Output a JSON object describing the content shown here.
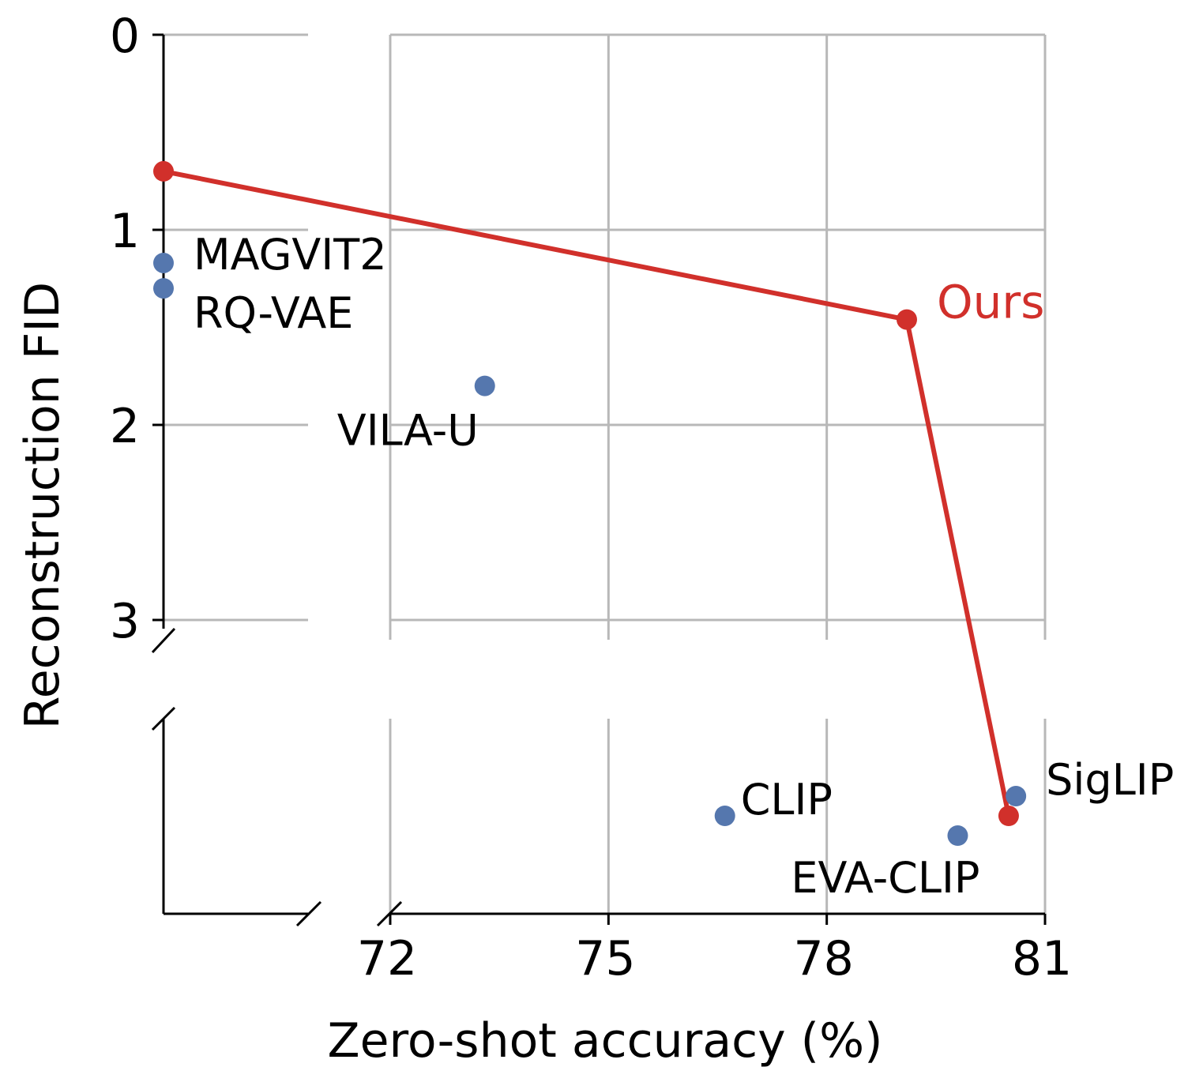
{
  "chart_data": {
    "type": "scatter",
    "xlabel": "Zero-shot accuracy (%)",
    "ylabel": "Reconstruction FID",
    "x_ticks": [
      "72",
      "75",
      "78",
      "81"
    ],
    "y_ticks": [
      "0",
      "1",
      "2",
      "3"
    ],
    "grid": true,
    "broken_axes": true,
    "colors": {
      "baseline": "#5577ae",
      "ours": "#d1302b"
    },
    "points": [
      {
        "label": "MAGVIT2",
        "x": null,
        "y": 1.17,
        "series": "baseline"
      },
      {
        "label": "RQ-VAE",
        "x": null,
        "y": 1.3,
        "series": "baseline"
      },
      {
        "label": "VILA-U",
        "x": 73.3,
        "y": 1.8,
        "series": "baseline"
      },
      {
        "label": "CLIP",
        "x": 76.6,
        "y": null,
        "series": "baseline"
      },
      {
        "label": "EVA-CLIP",
        "x": 79.8,
        "y": null,
        "series": "baseline"
      },
      {
        "label": "SigLIP",
        "x": 80.6,
        "y": null,
        "series": "baseline"
      }
    ],
    "ours": {
      "label": "Ours",
      "points": [
        {
          "x": null,
          "y": 0.7
        },
        {
          "x": 79.1,
          "y": 1.46
        },
        {
          "x": 80.5,
          "y": null
        }
      ]
    }
  }
}
